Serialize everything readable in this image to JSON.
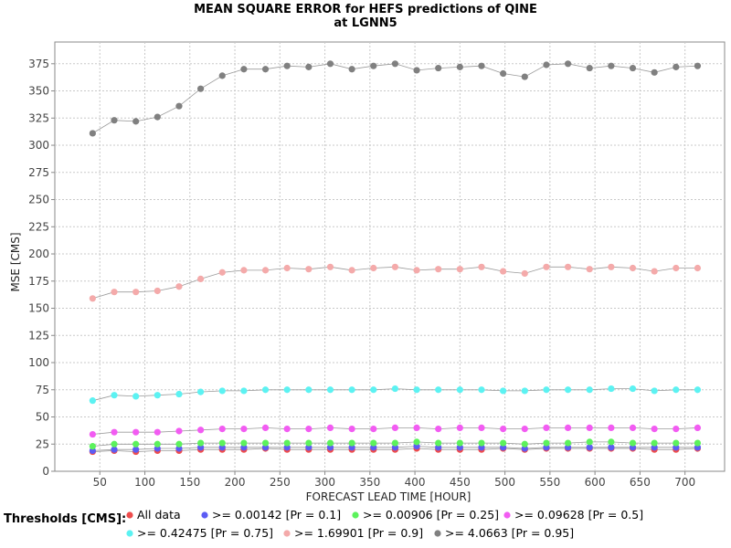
{
  "chart_data": {
    "type": "line",
    "title": "MEAN SQUARE ERROR for HEFS predictions of QINE",
    "subtitle": "at LGNN5",
    "xlabel": "FORECAST LEAD TIME [HOUR]",
    "ylabel": "MSE [CMS]",
    "xlim": [
      0,
      744
    ],
    "ylim": [
      0,
      395
    ],
    "xticks": [
      50,
      100,
      150,
      200,
      250,
      300,
      350,
      400,
      450,
      500,
      550,
      600,
      650,
      700
    ],
    "yticks": [
      0,
      25,
      50,
      75,
      100,
      125,
      150,
      175,
      200,
      225,
      250,
      275,
      300,
      325,
      350,
      375
    ],
    "grid": true,
    "legend_title": "Thresholds [CMS]:",
    "legend_position": "bottom",
    "x": [
      42,
      66,
      90,
      114,
      138,
      162,
      186,
      210,
      234,
      258,
      282,
      306,
      330,
      354,
      378,
      402,
      426,
      450,
      474,
      498,
      522,
      546,
      570,
      594,
      618,
      642,
      666,
      690,
      714
    ],
    "series": [
      {
        "name": "All data",
        "color": "#ee4c4c",
        "values": [
          18,
          19,
          18,
          19,
          19,
          20,
          20,
          20,
          21,
          20,
          20,
          20,
          20,
          20,
          20,
          21,
          20,
          20,
          20,
          21,
          20,
          21,
          21,
          21,
          21,
          21,
          20,
          20,
          21
        ]
      },
      {
        "name": ">= 0.00142 [Pr = 0.1]",
        "color": "#5c5cf4",
        "values": [
          19,
          20,
          20,
          21,
          21,
          22,
          22,
          22,
          22,
          22,
          22,
          22,
          22,
          22,
          22,
          23,
          22,
          22,
          22,
          22,
          21,
          22,
          22,
          22,
          22,
          22,
          22,
          22,
          22
        ]
      },
      {
        "name": ">= 0.00906 [Pr = 0.25]",
        "color": "#5cf25c",
        "values": [
          23,
          25,
          25,
          25,
          25,
          26,
          26,
          26,
          26,
          26,
          26,
          26,
          26,
          26,
          26,
          27,
          26,
          26,
          26,
          26,
          25,
          26,
          26,
          27,
          27,
          26,
          26,
          26,
          26
        ]
      },
      {
        "name": ">= 0.09628 [Pr = 0.5]",
        "color": "#f25cf2",
        "values": [
          34,
          36,
          36,
          36,
          37,
          38,
          39,
          39,
          40,
          39,
          39,
          40,
          39,
          39,
          40,
          40,
          39,
          40,
          40,
          39,
          39,
          40,
          40,
          40,
          40,
          40,
          39,
          39,
          40
        ]
      },
      {
        "name": ">= 0.42475 [Pr = 0.75]",
        "color": "#5cf2f2",
        "values": [
          65,
          70,
          69,
          70,
          71,
          73,
          74,
          74,
          75,
          75,
          75,
          75,
          75,
          75,
          76,
          75,
          75,
          75,
          75,
          74,
          74,
          75,
          75,
          75,
          76,
          76,
          74,
          75,
          75
        ]
      },
      {
        "name": ">= 1.69901 [Pr = 0.9]",
        "color": "#f4aaaa",
        "values": [
          159,
          165,
          165,
          166,
          170,
          177,
          183,
          185,
          185,
          187,
          186,
          188,
          185,
          187,
          188,
          185,
          186,
          186,
          188,
          184,
          182,
          188,
          188,
          186,
          188,
          187,
          184,
          187,
          187
        ]
      },
      {
        "name": ">= 4.0663 [Pr = 0.95]",
        "color": "#808080",
        "values": [
          311,
          323,
          322,
          326,
          336,
          352,
          364,
          370,
          370,
          373,
          372,
          375,
          370,
          373,
          375,
          369,
          371,
          372,
          373,
          366,
          363,
          374,
          375,
          371,
          373,
          371,
          367,
          372,
          373
        ]
      }
    ]
  }
}
